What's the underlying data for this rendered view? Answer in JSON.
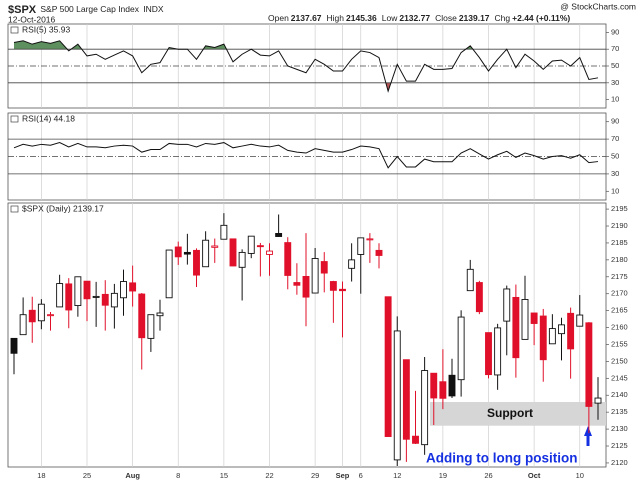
{
  "header": {
    "symbol": "$SPX",
    "name": "S&P 500 Large Cap Index",
    "exchange": "INDX",
    "date": "12-Oct-2016",
    "source": "@ StockCharts.com",
    "quote": [
      {
        "label": "Open",
        "value": 2137.67
      },
      {
        "label": "High",
        "value": 2145.36
      },
      {
        "label": "Low",
        "value": 2132.77
      },
      {
        "label": "Close",
        "value": 2139.17
      },
      {
        "label": "Chg",
        "value": "+2.44 (+0.11%)"
      }
    ]
  },
  "chart_data": [
    {
      "type": "line",
      "title": "RSI(5) 35.93",
      "ylim": [
        0,
        100
      ],
      "yticks": [
        10,
        30,
        50,
        70,
        90
      ],
      "levels": [
        30,
        50,
        70
      ],
      "overbought_color": "#5e8f5e",
      "oversold_color": "#b55454",
      "series": [
        {
          "name": "RSI(5)",
          "color": "#111111",
          "values": [
            78,
            80,
            76,
            79,
            77,
            80,
            68,
            76,
            62,
            64,
            58,
            63,
            68,
            62,
            42,
            52,
            54,
            72,
            70,
            70,
            58,
            74,
            72,
            76,
            55,
            64,
            70,
            63,
            62,
            68,
            50,
            46,
            42,
            58,
            52,
            44,
            44,
            58,
            68,
            66,
            60,
            20,
            52,
            32,
            32,
            52,
            46,
            46,
            47,
            66,
            74,
            60,
            44,
            58,
            70,
            48,
            64,
            56,
            46,
            56,
            57,
            50,
            60,
            34,
            35.93
          ]
        }
      ]
    },
    {
      "type": "line",
      "title": "RSI(14) 44.18",
      "ylim": [
        0,
        100
      ],
      "yticks": [
        10,
        30,
        50,
        70,
        90
      ],
      "levels": [
        30,
        50,
        70
      ],
      "series": [
        {
          "name": "RSI(14)",
          "color": "#111111",
          "values": [
            60,
            64,
            62,
            64,
            63,
            66,
            61,
            65,
            61,
            61,
            60,
            62,
            63,
            62,
            55,
            58,
            58,
            65,
            64,
            64,
            61,
            65,
            64,
            66,
            60,
            62,
            64,
            62,
            61,
            63,
            57,
            55,
            54,
            59,
            57,
            55,
            55,
            58,
            62,
            61,
            59,
            37,
            50,
            38,
            38,
            47,
            44,
            44,
            44,
            54,
            59,
            53,
            47,
            52,
            56,
            49,
            54,
            51,
            47,
            50,
            51,
            48,
            52,
            43,
            44.18
          ]
        }
      ]
    },
    {
      "type": "candlestick",
      "title": "$SPX (Daily) 2139.17",
      "ylim": [
        2118.8,
        2196.8
      ],
      "yticks": [
        2120,
        2125,
        2130,
        2135,
        2140,
        2145,
        2150,
        2155,
        2160,
        2165,
        2170,
        2175,
        2180,
        2185,
        2190,
        2195
      ],
      "up_color": "#111111",
      "down_color": "#e0102a",
      "grid": true,
      "categories": [
        null,
        null,
        null,
        "18",
        null,
        null,
        null,
        null,
        "25",
        null,
        null,
        null,
        null,
        "Aug",
        null,
        null,
        null,
        null,
        "8",
        null,
        null,
        null,
        null,
        "15",
        null,
        null,
        null,
        null,
        "22",
        null,
        null,
        null,
        null,
        "29",
        null,
        null,
        "Sep",
        null,
        "6",
        null,
        null,
        null,
        "12",
        null,
        null,
        null,
        null,
        "19",
        null,
        null,
        null,
        null,
        "26",
        null,
        null,
        null,
        null,
        "Oct",
        null,
        null,
        null,
        null,
        "10",
        null,
        null
      ],
      "open": [
        2156.8,
        2157.9,
        2165.1,
        2162.0,
        2163.8,
        2166.1,
        2172.9,
        2166.5,
        2173.7,
        2168.9,
        2169.8,
        2166.1,
        2168.8,
        2173.2,
        2169.9,
        2156.8,
        2163.5,
        2168.8,
        2183.8,
        2182.2,
        2182.8,
        2177.97,
        2183.7,
        2186.1,
        2186.2,
        2177.8,
        2181.9,
        2184.2,
        2181.6,
        2187.8,
        2185.1,
        2173.3,
        2175.1,
        2170.2,
        2179.5,
        2173.6,
        2171.3,
        2177.5,
        2181.6,
        2186.0,
        2182.8,
        2169.1,
        2120.9,
        2150.5,
        2127.9,
        2125.4,
        2146.5,
        2143.99,
        2145.9,
        2144.6,
        2170.9,
        2173.3,
        2158.5,
        2146.0,
        2161.9,
        2168.9,
        2156.5,
        2164.3,
        2163.4,
        2155.2,
        2158.2,
        2164.2,
        2160.4,
        2161.4,
        2137.67
      ],
      "high": [
        2156.8,
        2168.9,
        2169.1,
        2168.4,
        2164.6,
        2175.6,
        2174.6,
        2175.1,
        2173.7,
        2173.5,
        2174.0,
        2172.9,
        2177.1,
        2178.3,
        2170.2,
        2163.8,
        2168.2,
        2182.9,
        2185.4,
        2187.7,
        2183.4,
        2188.45,
        2186.3,
        2193.8,
        2186.2,
        2183.1,
        2187.0,
        2185.0,
        2184.9,
        2193.4,
        2186.7,
        2179.0,
        2187.9,
        2183.5,
        2182.3,
        2173.8,
        2173.6,
        2184.9,
        2186.6,
        2187.9,
        2184.9,
        2169.1,
        2163.3,
        2150.5,
        2141.3,
        2151.3,
        2146.5,
        2153.6,
        2150.8,
        2165.1,
        2179.99,
        2173.8,
        2158.5,
        2161.1,
        2172.4,
        2172.7,
        2175.3,
        2164.4,
        2165.5,
        2163.95,
        2162.9,
        2165.9,
        2169.6,
        2161.6,
        2145.36
      ],
      "low": [
        2146.2,
        2157.9,
        2155.5,
        2159.5,
        2159.1,
        2166.1,
        2159.8,
        2163.2,
        2161.9,
        2160.2,
        2159.1,
        2159.7,
        2163.5,
        2166.2,
        2147.6,
        2152.8,
        2159.1,
        2168.8,
        2178.5,
        2178.6,
        2172.0,
        2177.97,
        2179.1,
        2186.1,
        2178.1,
        2168.0,
        2180.5,
        2175.1,
        2175.3,
        2186.8,
        2171.3,
        2169.7,
        2160.4,
        2170.2,
        2170.4,
        2161.4,
        2157.1,
        2173.6,
        2170.0,
        2179.1,
        2177.5,
        2127.8,
        2119.1,
        2120.3,
        2125.6,
        2122.4,
        2131.2,
        2135.9,
        2139.2,
        2139.6,
        2170.9,
        2163.97,
        2145.0,
        2141.6,
        2151.8,
        2145.2,
        2156.5,
        2154.8,
        2144.0,
        2155.2,
        2150.3,
        2144.9,
        2160.4,
        2128.8,
        2132.77
      ],
      "close": [
        2152.4,
        2163.8,
        2161.7,
        2166.9,
        2163.8,
        2173.0,
        2165.2,
        2175.0,
        2168.5,
        2169.2,
        2166.6,
        2170.1,
        2173.6,
        2170.8,
        2157.0,
        2163.8,
        2164.3,
        2182.9,
        2180.9,
        2181.7,
        2175.5,
        2185.8,
        2184.1,
        2190.2,
        2178.2,
        2182.2,
        2187.0,
        2183.9,
        2182.6,
        2186.9,
        2175.4,
        2172.5,
        2169.0,
        2180.4,
        2176.1,
        2171.0,
        2170.9,
        2180.0,
        2186.5,
        2186.2,
        2181.3,
        2127.8,
        2159.0,
        2127.0,
        2125.8,
        2147.3,
        2139.2,
        2139.1,
        2139.8,
        2163.1,
        2177.2,
        2164.7,
        2146.1,
        2159.9,
        2171.4,
        2151.1,
        2168.3,
        2161.2,
        2150.5,
        2159.7,
        2160.8,
        2153.7,
        2163.7,
        2136.7,
        2139.17
      ],
      "support": {
        "label": "Support",
        "range": [
          2131,
          2138
        ],
        "color": "#d6d6d6"
      },
      "annotation": {
        "text": "Adding to long position",
        "color": "#1530e0"
      }
    }
  ]
}
